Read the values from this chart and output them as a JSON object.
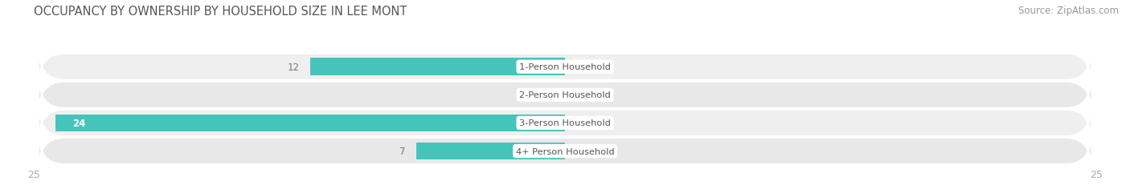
{
  "title": "OCCUPANCY BY OWNERSHIP BY HOUSEHOLD SIZE IN LEE MONT",
  "source": "Source: ZipAtlas.com",
  "categories": [
    "1-Person Household",
    "2-Person Household",
    "3-Person Household",
    "4+ Person Household"
  ],
  "owner_values": [
    12,
    0,
    24,
    7
  ],
  "renter_values": [
    0,
    0,
    0,
    0
  ],
  "xlim_left": -25,
  "xlim_right": 25,
  "owner_color": "#45C4BC",
  "renter_color": "#F4A0B4",
  "row_color_odd": "#EFEFEF",
  "row_color_even": "#E8E8E8",
  "label_bg": "#FFFFFF",
  "title_color": "#555555",
  "value_color_outside": "#777777",
  "value_color_inside": "#FFFFFF",
  "tick_color": "#AAAAAA",
  "source_color": "#999999",
  "title_fontsize": 10.5,
  "bar_fontsize": 8.5,
  "tick_fontsize": 9,
  "legend_fontsize": 9,
  "source_fontsize": 8.5,
  "bar_height": 0.62,
  "fig_width": 14.06,
  "fig_height": 2.32,
  "dpi": 100
}
